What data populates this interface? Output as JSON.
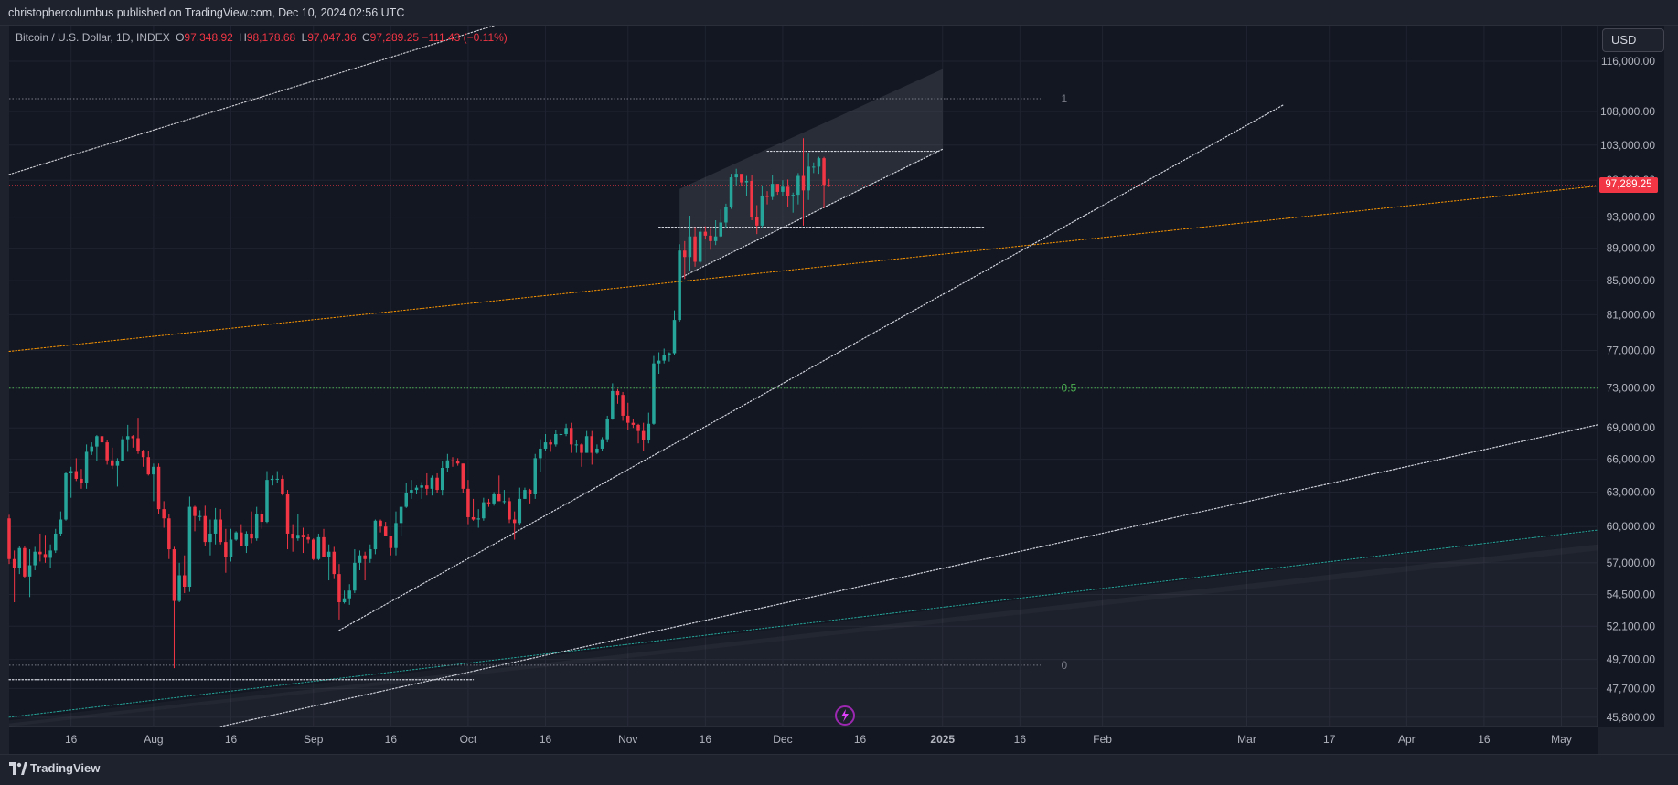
{
  "header": {
    "published": "christophercolumbus published on TradingView.com, Dec 10, 2024 02:56 UTC"
  },
  "legend": {
    "symbol": "Bitcoin / U.S. Dollar, 1D, INDEX",
    "open_label": "O",
    "open": "97,348.92",
    "high_label": "H",
    "high": "98,178.68",
    "low_label": "L",
    "low": "97,047.36",
    "close_label": "C",
    "close": "97,289.25",
    "change": "−111.43 (−0.11%)"
  },
  "currency_button": "USD",
  "last_price_tag": "97,289.25",
  "footer": {
    "brand": "TradingView"
  },
  "colors": {
    "background": "#131722",
    "up": "#26a69a",
    "down": "#f23645",
    "fib_mid": "#4caf50",
    "orange_trend": "#ff9800"
  },
  "icons": {
    "lightning": "lightning-icon",
    "logo": "tradingview-logo-icon"
  },
  "chart_data": {
    "type": "candlestick",
    "x_tick_labels": [
      "16",
      "Aug",
      "16",
      "Sep",
      "16",
      "Oct",
      "16",
      "Nov",
      "16",
      "Dec",
      "16",
      "2025",
      "16",
      "Feb",
      "Mar",
      "17",
      "Apr",
      "16",
      "May"
    ],
    "y_tick_labels": [
      "116,000.00",
      "108,000.00",
      "103,000.00",
      "98,000.00",
      "93,000.00",
      "89,000.00",
      "85,000.00",
      "81,000.00",
      "77,000.00",
      "73,000.00",
      "69,000.00",
      "66,000.00",
      "63,000.00",
      "60,000.00",
      "57,000.00",
      "54,500.00",
      "52,100.00",
      "49,700.00",
      "47,700.00",
      "45,800.00"
    ],
    "y_scale": "log",
    "ylim": [
      45200,
      122000
    ],
    "x_range": [
      "2024-07-04",
      "2025-05-08"
    ],
    "candles": [
      [
        "2024-07-04",
        60700,
        61000,
        56900,
        57300
      ],
      [
        "2024-07-05",
        57300,
        58000,
        53900,
        56600
      ],
      [
        "2024-07-06",
        56600,
        58400,
        56100,
        58200
      ],
      [
        "2024-07-07",
        58200,
        58400,
        55800,
        55900
      ],
      [
        "2024-07-08",
        55900,
        58100,
        54300,
        56800
      ],
      [
        "2024-07-09",
        56800,
        58300,
        56400,
        57900
      ],
      [
        "2024-07-10",
        57900,
        59400,
        57100,
        57700
      ],
      [
        "2024-07-11",
        57700,
        59300,
        57000,
        57400
      ],
      [
        "2024-07-12",
        57400,
        58500,
        56600,
        58000
      ],
      [
        "2024-07-13",
        58000,
        59800,
        57800,
        59400
      ],
      [
        "2024-07-14",
        59400,
        61300,
        59200,
        60600
      ],
      [
        "2024-07-15",
        60600,
        64800,
        60500,
        64700
      ],
      [
        "2024-07-16",
        64700,
        65300,
        62500,
        64900
      ],
      [
        "2024-07-17",
        64900,
        66100,
        64000,
        64200
      ],
      [
        "2024-07-18",
        64200,
        65100,
        63300,
        63800
      ],
      [
        "2024-07-19",
        63800,
        67400,
        63300,
        66700
      ],
      [
        "2024-07-20",
        66700,
        67600,
        66400,
        67200
      ],
      [
        "2024-07-21",
        67200,
        68300,
        65800,
        68200
      ],
      [
        "2024-07-22",
        68200,
        68500,
        66600,
        67600
      ],
      [
        "2024-07-23",
        67600,
        67800,
        65500,
        65900
      ],
      [
        "2024-07-24",
        65900,
        67100,
        65100,
        65400
      ],
      [
        "2024-07-25",
        65400,
        66100,
        63500,
        65800
      ],
      [
        "2024-07-26",
        65800,
        68200,
        65800,
        67900
      ],
      [
        "2024-07-27",
        67900,
        69300,
        66700,
        68200
      ],
      [
        "2024-07-28",
        68200,
        68300,
        67100,
        68000
      ],
      [
        "2024-07-29",
        68000,
        70000,
        66500,
        66800
      ],
      [
        "2024-07-30",
        66800,
        66900,
        65300,
        66200
      ],
      [
        "2024-07-31",
        66200,
        66800,
        64500,
        64600
      ],
      [
        "2024-08-01",
        64600,
        65600,
        62200,
        65300
      ],
      [
        "2024-08-02",
        65300,
        65600,
        61100,
        61500
      ],
      [
        "2024-08-03",
        61500,
        62200,
        59900,
        60700
      ],
      [
        "2024-08-04",
        60700,
        61100,
        57300,
        58100
      ],
      [
        "2024-08-05",
        58100,
        58300,
        49100,
        54000
      ],
      [
        "2024-08-06",
        54000,
        57000,
        53900,
        56000
      ],
      [
        "2024-08-07",
        56000,
        57600,
        54600,
        55100
      ],
      [
        "2024-08-08",
        55100,
        62600,
        54700,
        61700
      ],
      [
        "2024-08-09",
        61700,
        61800,
        59600,
        60900
      ],
      [
        "2024-08-10",
        60900,
        61400,
        60500,
        60900
      ],
      [
        "2024-08-11",
        60900,
        61800,
        58400,
        58700
      ],
      [
        "2024-08-12",
        58700,
        60600,
        57600,
        59400
      ],
      [
        "2024-08-13",
        59400,
        61600,
        58500,
        60600
      ],
      [
        "2024-08-14",
        60600,
        61500,
        58500,
        58700
      ],
      [
        "2024-08-15",
        58700,
        59800,
        56200,
        57500
      ],
      [
        "2024-08-16",
        57500,
        59800,
        57100,
        58900
      ],
      [
        "2024-08-17",
        58900,
        59600,
        58800,
        59500
      ],
      [
        "2024-08-18",
        59500,
        60200,
        58400,
        58400
      ],
      [
        "2024-08-19",
        58400,
        59600,
        57800,
        59400
      ],
      [
        "2024-08-20",
        59400,
        61300,
        58600,
        59000
      ],
      [
        "2024-08-21",
        59000,
        61700,
        58800,
        61100
      ],
      [
        "2024-08-22",
        61100,
        61400,
        59800,
        60400
      ],
      [
        "2024-08-23",
        60400,
        64900,
        60300,
        64100
      ],
      [
        "2024-08-24",
        64100,
        64500,
        63600,
        64200
      ],
      [
        "2024-08-25",
        64200,
        64900,
        63800,
        64200
      ],
      [
        "2024-08-26",
        64200,
        64500,
        62700,
        62800
      ],
      [
        "2024-08-27",
        62800,
        63200,
        58100,
        59400
      ],
      [
        "2024-08-28",
        59400,
        60200,
        57900,
        59000
      ],
      [
        "2024-08-29",
        59000,
        61100,
        58800,
        59300
      ],
      [
        "2024-08-30",
        59300,
        59900,
        57800,
        59100
      ],
      [
        "2024-08-31",
        59100,
        59400,
        58600,
        58900
      ],
      [
        "2024-09-01",
        58900,
        59000,
        57200,
        57300
      ],
      [
        "2024-09-02",
        57300,
        59400,
        57200,
        59100
      ],
      [
        "2024-09-03",
        59100,
        59800,
        57500,
        57500
      ],
      [
        "2024-09-04",
        57500,
        58500,
        55600,
        57900
      ],
      [
        "2024-09-05",
        57900,
        58300,
        55700,
        56100
      ],
      [
        "2024-09-06",
        56100,
        56900,
        52600,
        53900
      ],
      [
        "2024-09-07",
        53900,
        54800,
        53800,
        54200
      ],
      [
        "2024-09-08",
        54200,
        55300,
        53700,
        54800
      ],
      [
        "2024-09-09",
        54800,
        58100,
        54600,
        57000
      ],
      [
        "2024-09-10",
        57000,
        58000,
        56400,
        57600
      ],
      [
        "2024-09-11",
        57600,
        57900,
        55600,
        57300
      ],
      [
        "2024-09-12",
        57300,
        58500,
        57000,
        58100
      ],
      [
        "2024-09-13",
        58100,
        60600,
        57700,
        60500
      ],
      [
        "2024-09-14",
        60500,
        60600,
        59500,
        60000
      ],
      [
        "2024-09-15",
        60000,
        60400,
        59600,
        59200
      ],
      [
        "2024-09-16",
        59200,
        59200,
        57600,
        58200
      ],
      [
        "2024-09-17",
        58200,
        61300,
        57600,
        60300
      ],
      [
        "2024-09-18",
        60300,
        61600,
        59200,
        61700
      ],
      [
        "2024-09-19",
        61700,
        63800,
        61600,
        62900
      ],
      [
        "2024-09-20",
        62900,
        64100,
        62400,
        63200
      ],
      [
        "2024-09-21",
        63200,
        63600,
        62800,
        63400
      ],
      [
        "2024-09-22",
        63400,
        63900,
        62400,
        63600
      ],
      [
        "2024-09-23",
        63600,
        64700,
        62700,
        63300
      ],
      [
        "2024-09-24",
        63300,
        64500,
        62700,
        64300
      ],
      [
        "2024-09-25",
        64300,
        64700,
        62900,
        63200
      ],
      [
        "2024-09-26",
        63200,
        65800,
        62700,
        65200
      ],
      [
        "2024-09-27",
        65200,
        66500,
        64800,
        65900
      ],
      [
        "2024-09-28",
        65900,
        66200,
        65300,
        65800
      ],
      [
        "2024-09-29",
        65800,
        66100,
        65400,
        65600
      ],
      [
        "2024-09-30",
        65600,
        65600,
        62900,
        63300
      ],
      [
        "2024-10-01",
        63300,
        64100,
        60200,
        60800
      ],
      [
        "2024-10-02",
        60800,
        62400,
        60500,
        60600
      ],
      [
        "2024-10-03",
        60600,
        61500,
        59900,
        60700
      ],
      [
        "2024-10-04",
        60700,
        62500,
        60500,
        62100
      ],
      [
        "2024-10-05",
        62100,
        62400,
        61700,
        62000
      ],
      [
        "2024-10-06",
        62000,
        63000,
        61800,
        62800
      ],
      [
        "2024-10-07",
        62800,
        64500,
        62200,
        62200
      ],
      [
        "2024-10-08",
        62200,
        63200,
        61900,
        62200
      ],
      [
        "2024-10-09",
        62200,
        62500,
        60300,
        60600
      ],
      [
        "2024-10-10",
        60600,
        61300,
        58900,
        60300
      ],
      [
        "2024-10-11",
        60300,
        63400,
        60100,
        62400
      ],
      [
        "2024-10-12",
        62400,
        63400,
        62400,
        63200
      ],
      [
        "2024-10-13",
        63200,
        63300,
        62000,
        62800
      ],
      [
        "2024-10-14",
        62800,
        66500,
        62400,
        66100
      ],
      [
        "2024-10-15",
        66100,
        67900,
        64800,
        67000
      ],
      [
        "2024-10-16",
        67000,
        68400,
        66800,
        67600
      ],
      [
        "2024-10-17",
        67600,
        67900,
        66700,
        67400
      ],
      [
        "2024-10-18",
        67400,
        68800,
        67200,
        68400
      ],
      [
        "2024-10-19",
        68400,
        68600,
        68100,
        68400
      ],
      [
        "2024-10-20",
        68400,
        69400,
        68200,
        69000
      ],
      [
        "2024-10-21",
        69000,
        69500,
        66600,
        67400
      ],
      [
        "2024-10-22",
        67400,
        67800,
        66600,
        67400
      ],
      [
        "2024-10-23",
        67400,
        67500,
        65300,
        66600
      ],
      [
        "2024-10-24",
        66600,
        68700,
        66600,
        68200
      ],
      [
        "2024-10-25",
        68200,
        68700,
        65500,
        66600
      ],
      [
        "2024-10-26",
        66600,
        67400,
        66500,
        67000
      ],
      [
        "2024-10-27",
        67000,
        68100,
        66800,
        67900
      ],
      [
        "2024-10-28",
        67900,
        70200,
        67600,
        69900
      ],
      [
        "2024-10-29",
        69900,
        73500,
        69800,
        72700
      ],
      [
        "2024-10-30",
        72700,
        72900,
        71400,
        72300
      ],
      [
        "2024-10-31",
        72300,
        72600,
        69700,
        70200
      ],
      [
        "2024-11-01",
        70200,
        71500,
        68800,
        69500
      ],
      [
        "2024-11-02",
        69500,
        69900,
        69000,
        69300
      ],
      [
        "2024-11-03",
        69300,
        69400,
        67500,
        68700
      ],
      [
        "2024-11-04",
        68700,
        69500,
        66800,
        67800
      ],
      [
        "2024-11-05",
        67800,
        70500,
        67500,
        69400
      ],
      [
        "2024-11-06",
        69400,
        76400,
        69300,
        75600
      ],
      [
        "2024-11-07",
        75600,
        76800,
        74500,
        75900
      ],
      [
        "2024-11-08",
        75900,
        77200,
        75600,
        76500
      ],
      [
        "2024-11-09",
        76500,
        76800,
        75800,
        76700
      ],
      [
        "2024-11-10",
        76700,
        81500,
        76500,
        80400
      ],
      [
        "2024-11-11",
        80400,
        89500,
        80200,
        88700
      ],
      [
        "2024-11-12",
        88700,
        89900,
        85200,
        87900
      ],
      [
        "2024-11-13",
        87900,
        93200,
        86200,
        90500
      ],
      [
        "2024-11-14",
        90500,
        91700,
        86700,
        87300
      ],
      [
        "2024-11-15",
        87300,
        91800,
        87100,
        91100
      ],
      [
        "2024-11-16",
        91100,
        91800,
        90100,
        90600
      ],
      [
        "2024-11-17",
        90600,
        91500,
        88800,
        89900
      ],
      [
        "2024-11-18",
        89900,
        92600,
        89400,
        90500
      ],
      [
        "2024-11-19",
        90500,
        94000,
        90400,
        92300
      ],
      [
        "2024-11-20",
        92300,
        94800,
        91600,
        94300
      ],
      [
        "2024-11-21",
        94300,
        98900,
        94100,
        98400
      ],
      [
        "2024-11-22",
        98400,
        99600,
        97300,
        98900
      ],
      [
        "2024-11-23",
        98900,
        98800,
        97200,
        97700
      ],
      [
        "2024-11-24",
        97700,
        98600,
        95800,
        97900
      ],
      [
        "2024-11-25",
        97900,
        98700,
        92600,
        93000
      ],
      [
        "2024-11-26",
        93000,
        94600,
        90800,
        91900
      ],
      [
        "2024-11-27",
        91900,
        97300,
        91600,
        95900
      ],
      [
        "2024-11-28",
        95900,
        96500,
        94700,
        95700
      ],
      [
        "2024-11-29",
        95700,
        98700,
        95300,
        97500
      ],
      [
        "2024-11-30",
        97500,
        97200,
        96000,
        96400
      ],
      [
        "2024-12-01",
        96400,
        98000,
        95800,
        97100
      ],
      [
        "2024-12-02",
        97100,
        98100,
        94400,
        95800
      ],
      [
        "2024-12-03",
        95800,
        96300,
        93600,
        96000
      ],
      [
        "2024-12-04",
        96000,
        99000,
        94700,
        98600
      ],
      [
        "2024-12-05",
        98600,
        104000,
        91900,
        96600
      ],
      [
        "2024-12-06",
        96600,
        101900,
        95300,
        99900
      ],
      [
        "2024-12-07",
        99900,
        100500,
        99000,
        99900
      ],
      [
        "2024-12-08",
        99900,
        101300,
        98900,
        101100
      ],
      [
        "2024-12-09",
        101100,
        101300,
        94200,
        97350
      ],
      [
        "2024-12-10",
        97349,
        98179,
        97047,
        97289
      ]
    ],
    "fib_levels": [
      {
        "label": "1",
        "price": 110000
      },
      {
        "label": "0.5",
        "price": 73000
      },
      {
        "label": "0",
        "price": 49300
      }
    ],
    "last_price": 97289.25,
    "grid": true
  }
}
